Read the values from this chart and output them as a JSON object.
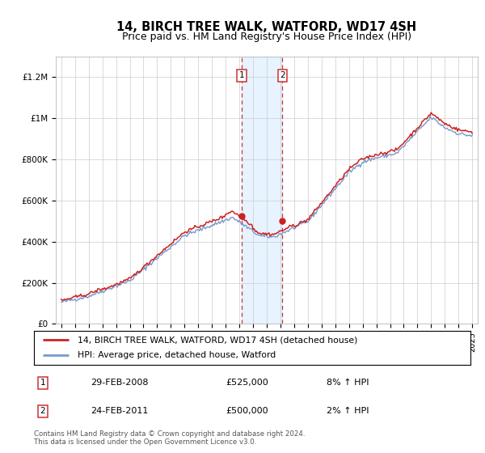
{
  "title": "14, BIRCH TREE WALK, WATFORD, WD17 4SH",
  "subtitle": "Price paid vs. HM Land Registry's House Price Index (HPI)",
  "ylim": [
    0,
    1300000
  ],
  "yticks": [
    0,
    200000,
    400000,
    600000,
    800000,
    1000000,
    1200000
  ],
  "ytick_labels": [
    "£0",
    "£200K",
    "£400K",
    "£600K",
    "£800K",
    "£1M",
    "£1.2M"
  ],
  "hpi_color": "#7799cc",
  "price_color": "#cc2222",
  "background_color": "#ffffff",
  "grid_color": "#cccccc",
  "sale1_year": 2008.15,
  "sale1_price": 525000,
  "sale2_year": 2011.15,
  "sale2_price": 500000,
  "shade_color": "#ddeeff",
  "dashed_color": "#cc3333",
  "legend_line1": "14, BIRCH TREE WALK, WATFORD, WD17 4SH (detached house)",
  "legend_line2": "HPI: Average price, detached house, Watford",
  "footer": "Contains HM Land Registry data © Crown copyright and database right 2024.\nThis data is licensed under the Open Government Licence v3.0.",
  "title_fontsize": 10.5,
  "subtitle_fontsize": 9,
  "tick_fontsize": 7.5
}
